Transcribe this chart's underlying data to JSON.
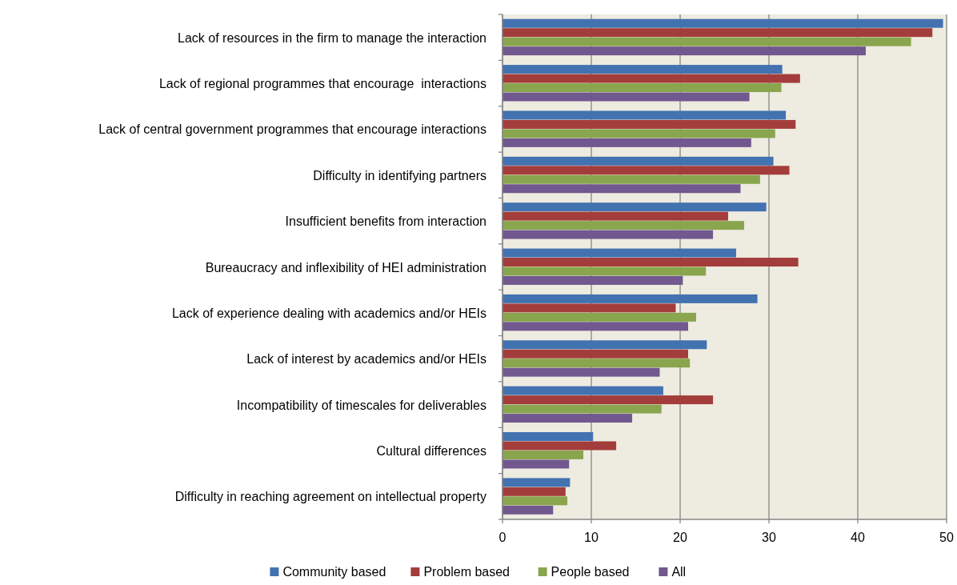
{
  "chart_data": {
    "type": "bar",
    "orientation": "horizontal",
    "categories": [
      "Lack of resources in the firm to manage the interaction",
      "Lack of regional programmes that encourage  interactions",
      "Lack of central government programmes that encourage interactions",
      "Difficulty in identifying partners",
      "Insufficient benefits from interaction",
      "Bureaucracy and inflexibility of HEI administration",
      "Lack of experience dealing with academics and/or HEIs",
      "Lack of interest by academics and/or HEIs",
      "Incompatibility of timescales for deliverables",
      "Cultural differences",
      "Difficulty in reaching agreement on intellectual property"
    ],
    "series": [
      {
        "name": "Community based",
        "color": "#4372b0",
        "values": [
          49.6,
          31.5,
          31.9,
          30.5,
          29.7,
          26.3,
          28.7,
          23.0,
          18.1,
          10.2,
          7.6
        ]
      },
      {
        "name": "Problem based",
        "color": "#a33d3b",
        "values": [
          48.4,
          33.5,
          33.0,
          32.3,
          25.4,
          33.3,
          19.5,
          20.9,
          23.7,
          12.8,
          7.1
        ]
      },
      {
        "name": "People based",
        "color": "#89a54e",
        "values": [
          46.0,
          31.4,
          30.7,
          29.0,
          27.2,
          22.9,
          21.8,
          21.1,
          17.9,
          9.1,
          7.3
        ]
      },
      {
        "name": "All",
        "color": "#71588f",
        "values": [
          40.9,
          27.8,
          28.0,
          26.8,
          23.7,
          20.3,
          20.9,
          17.7,
          14.6,
          7.5,
          5.7
        ]
      }
    ],
    "xlim": [
      0,
      50
    ],
    "xticks": [
      0,
      10,
      20,
      30,
      40,
      50
    ],
    "grid": "x",
    "legend": "bottom"
  }
}
